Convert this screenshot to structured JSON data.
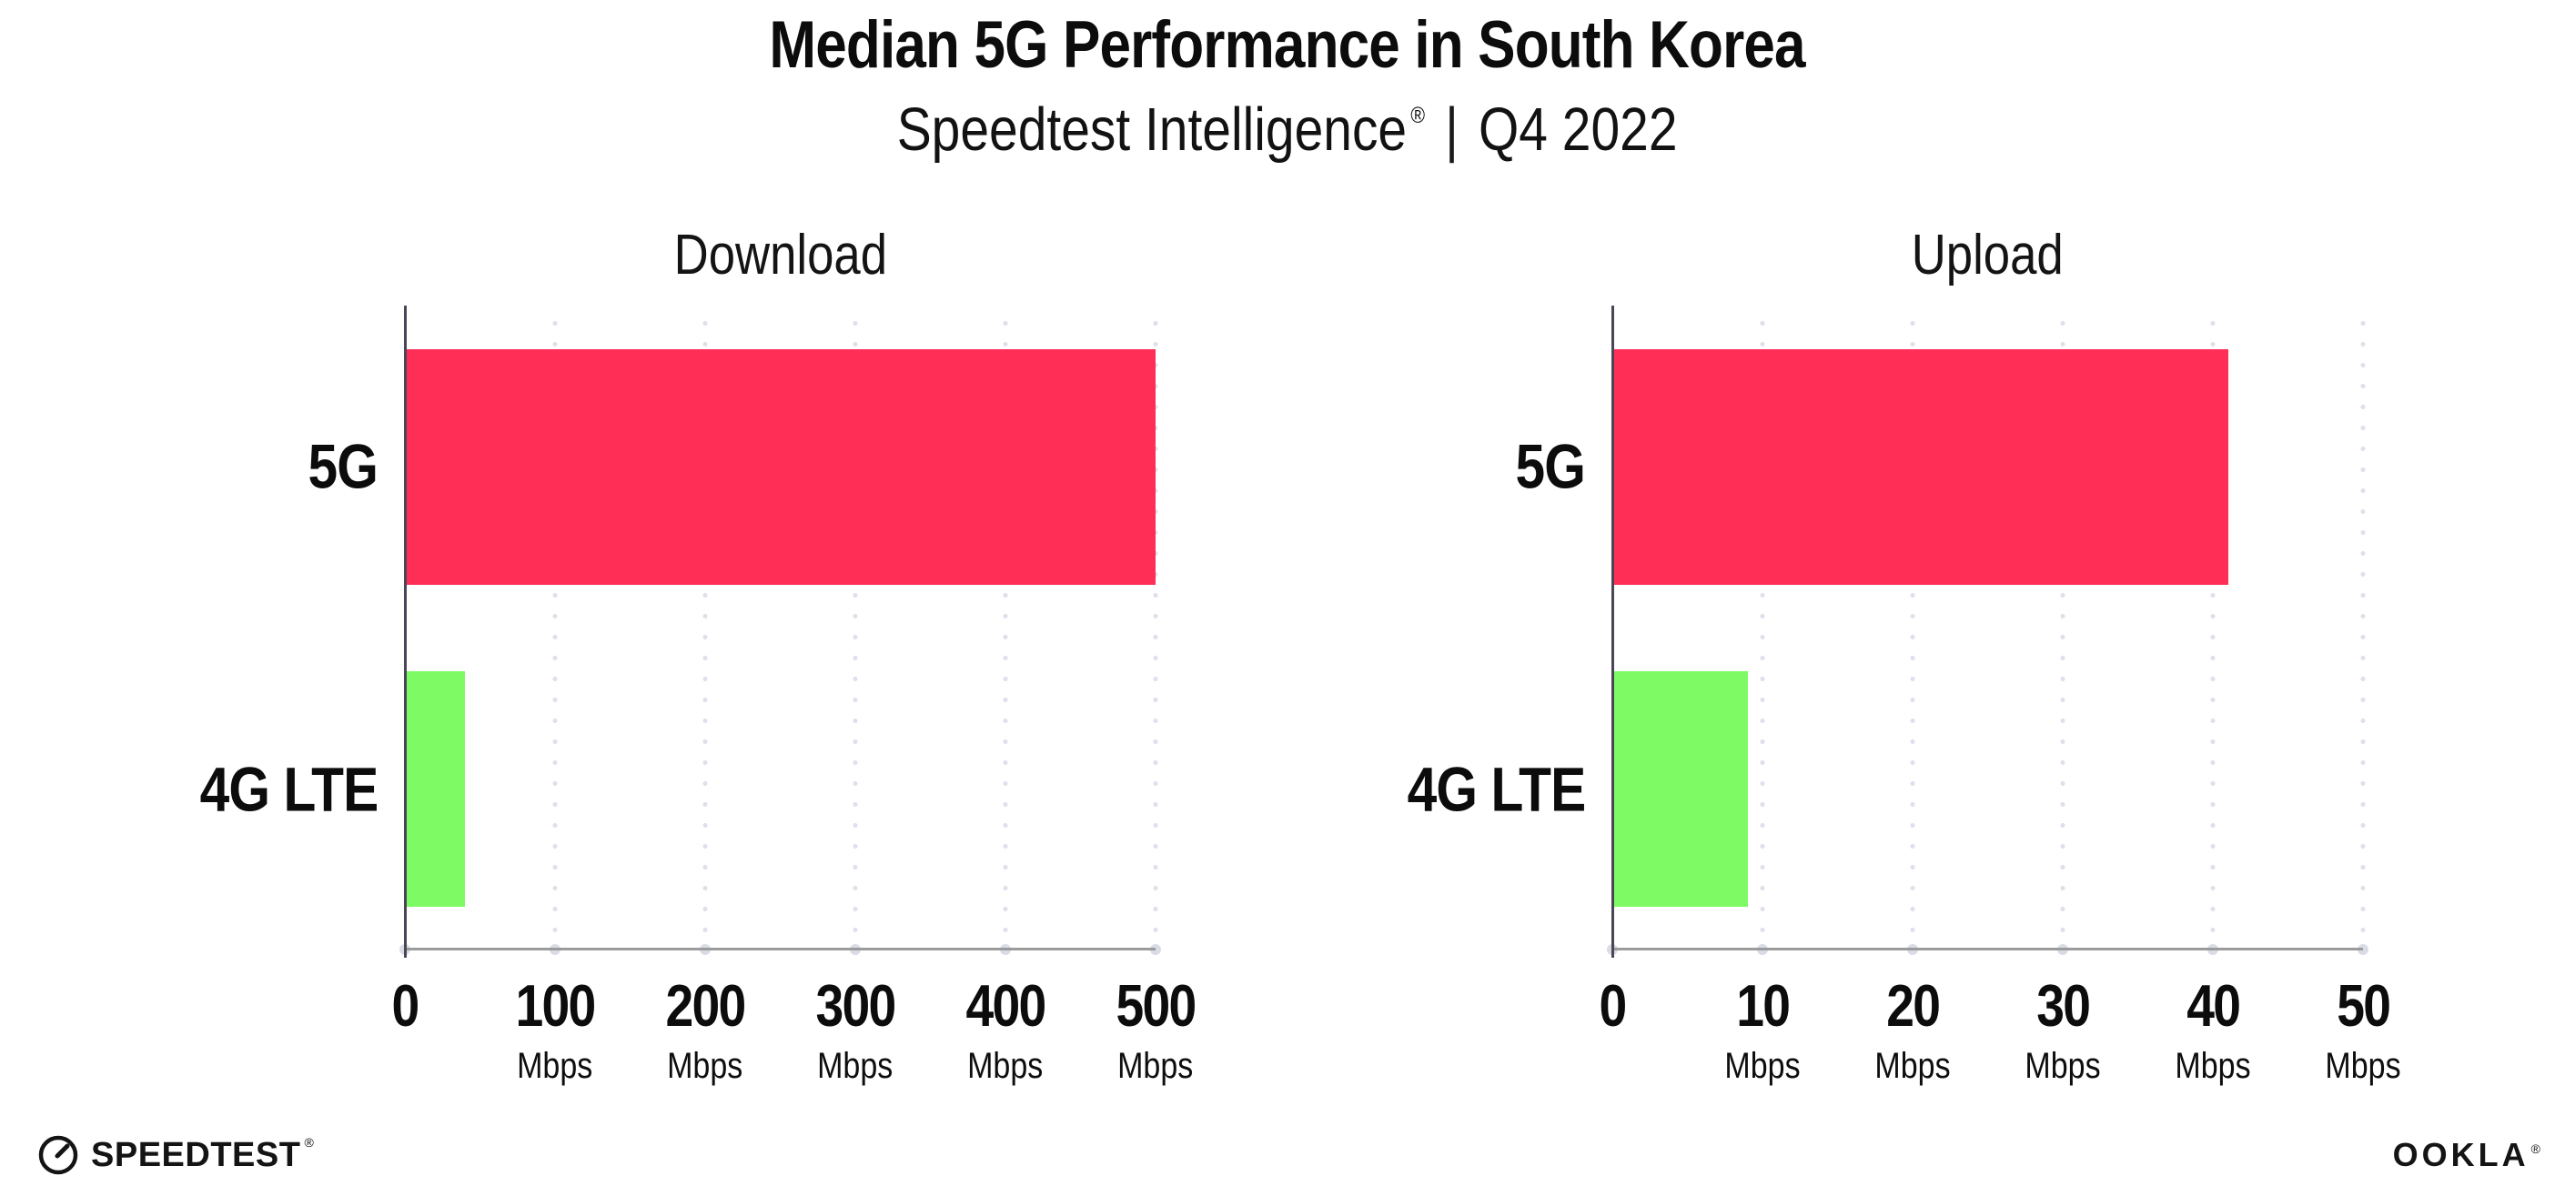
{
  "header": {
    "title": "Median 5G Performance in South Korea",
    "subtitle_brand": "Speedtest Intelligence",
    "subtitle_reg_mark": "®",
    "subtitle_separator": "|",
    "subtitle_period": "Q4 2022"
  },
  "chart_data": [
    {
      "type": "bar",
      "orientation": "horizontal",
      "title": "Download",
      "categories": [
        "5G",
        "4G LTE"
      ],
      "values": [
        500,
        40
      ],
      "unit": "Mbps",
      "xlim": [
        0,
        500
      ],
      "ticks": [
        0,
        100,
        200,
        300,
        400,
        500
      ],
      "tick_unit": "Mbps",
      "bar_colors": [
        "#FF2E57",
        "#7EFB64"
      ],
      "grid": "dotted-vertical-gridlines",
      "legend": "none"
    },
    {
      "type": "bar",
      "orientation": "horizontal",
      "title": "Upload",
      "categories": [
        "5G",
        "4G LTE"
      ],
      "values": [
        41,
        9
      ],
      "unit": "Mbps",
      "xlim": [
        0,
        50
      ],
      "ticks": [
        0,
        10,
        20,
        30,
        40,
        50
      ],
      "tick_unit": "Mbps",
      "bar_colors": [
        "#FF2E57",
        "#7EFB64"
      ],
      "grid": "dotted-vertical-gridlines",
      "legend": "none"
    }
  ],
  "footer": {
    "speedtest_label": "SPEEDTEST",
    "speedtest_mark": "®",
    "ookla_label": "OOKLA",
    "ookla_mark": "®"
  },
  "colors": {
    "bar_5g": "#FF2E57",
    "bar_4g_lte": "#7EFB64",
    "gridline": "#DEE0EB",
    "x_axis": "#9B9B9B",
    "y_axis": "#4B4656",
    "text": "#0C0C0C",
    "background": "#FFFFFF"
  }
}
